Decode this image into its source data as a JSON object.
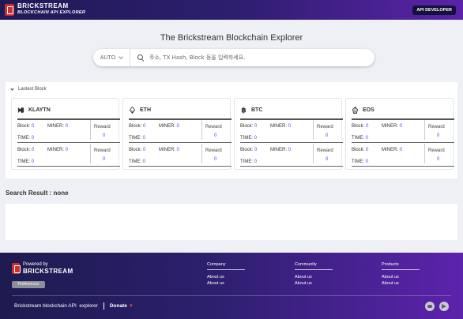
{
  "header": {
    "logo_line1": "BRICKSTREAM",
    "logo_line2": "BLOCKCHAIN API EXPLORER",
    "api_button": "API DEVELOPER"
  },
  "main": {
    "title": "The Brickstream Blockchain Explorer",
    "search": {
      "select_value": "AUTO",
      "placeholder": "주소, TX Hash, Block 등을 입력하세요."
    }
  },
  "latest": {
    "heading": "Lastest Block",
    "labels": {
      "block": "Block:",
      "miner": "MINER:",
      "time": "TIME:",
      "reward": "Reward"
    },
    "cards": [
      {
        "name": "KLAYTN",
        "icon": "klaytn-icon",
        "rows": [
          {
            "block": "0",
            "miner": "0",
            "time": "0",
            "reward": "0"
          },
          {
            "block": "0",
            "miner": "0",
            "time": "0",
            "reward": "0"
          }
        ]
      },
      {
        "name": "ETH",
        "icon": "ethereum-icon",
        "rows": [
          {
            "block": "0",
            "miner": "0",
            "time": "0",
            "reward": "0"
          },
          {
            "block": "0",
            "miner": "0",
            "time": "0",
            "reward": "0"
          }
        ]
      },
      {
        "name": "BTC",
        "icon": "bitcoin-icon",
        "rows": [
          {
            "block": "0",
            "miner": "0",
            "time": "0",
            "reward": "0"
          },
          {
            "block": "0",
            "miner": "0",
            "time": "0",
            "reward": "0"
          }
        ]
      },
      {
        "name": "EOS",
        "icon": "eos-icon",
        "rows": [
          {
            "block": "0",
            "miner": "0",
            "time": "0",
            "reward": "0"
          },
          {
            "block": "0",
            "miner": "0",
            "time": "0",
            "reward": "0"
          }
        ]
      }
    ]
  },
  "result": {
    "title": "Search Result : none"
  },
  "footer": {
    "powered_by": "Powered by",
    "brand": "BRICKSTREAM",
    "preferences": "Preferences",
    "columns": [
      {
        "title": "Company",
        "links": [
          "About us",
          "About us"
        ]
      },
      {
        "title": "Community",
        "links": [
          "About us",
          "About us"
        ]
      },
      {
        "title": "Products",
        "links": [
          "About us",
          "About us"
        ]
      }
    ],
    "tagline": "Brickstream blockchain API  explorer",
    "donate": "Donate",
    "heart": "♥"
  },
  "colors": {
    "accent": "#4a4de0",
    "header_dark": "#1f1a57",
    "header_purple": "#5a23a8",
    "logo_red": "#c8312d"
  }
}
